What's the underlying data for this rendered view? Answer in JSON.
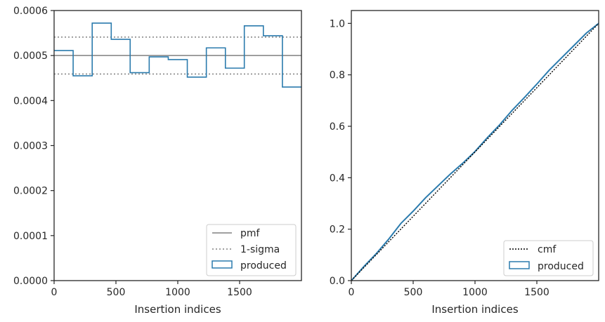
{
  "colors": {
    "produced": "#2b7bad",
    "pmf": "#808080",
    "sigma": "#808080",
    "cmf": "#000000",
    "axes": "#262626"
  },
  "chart_data": [
    {
      "type": "histogram",
      "xlabel": "Insertion indices",
      "ylabel": "",
      "xlim": [
        0,
        2000
      ],
      "ylim": [
        0,
        0.0006
      ],
      "xticks": [
        0,
        500,
        1000,
        1500
      ],
      "xtick_labels": [
        "0",
        "500",
        "1000",
        "1500"
      ],
      "yticks": [
        0,
        0.0001,
        0.0002,
        0.0003,
        0.0004,
        0.0005,
        0.0006
      ],
      "ytick_labels": [
        "0.0000",
        "0.0001",
        "0.0002",
        "0.0003",
        "0.0004",
        "0.0005",
        "0.0006"
      ],
      "pmf": 0.0005,
      "sigma_upper": 0.000541,
      "sigma_lower": 0.000459,
      "bin_edges": [
        0,
        154,
        308,
        462,
        615,
        769,
        923,
        1077,
        1231,
        1385,
        1538,
        1692,
        1846,
        2000
      ],
      "produced": [
        0.000511,
        0.000455,
        0.000572,
        0.000536,
        0.000462,
        0.000497,
        0.000491,
        0.000452,
        0.000517,
        0.000472,
        0.000566,
        0.000544,
        0.00043
      ],
      "legend": {
        "placement": "lower-right",
        "entries": [
          "pmf",
          "1-sigma",
          "produced"
        ]
      }
    },
    {
      "type": "line",
      "xlabel": "Insertion indices",
      "ylabel": "",
      "xlim": [
        0,
        2000
      ],
      "ylim": [
        0,
        1.05
      ],
      "xticks": [
        0,
        500,
        1000,
        1500
      ],
      "xtick_labels": [
        "0",
        "500",
        "1000",
        "1500"
      ],
      "yticks": [
        0,
        0.2,
        0.4,
        0.6,
        0.8,
        1.0
      ],
      "ytick_labels": [
        "0.0",
        "0.2",
        "0.4",
        "0.6",
        "0.8",
        "1.0"
      ],
      "cmf": {
        "x": [
          0,
          2000
        ],
        "y": [
          0,
          1
        ]
      },
      "produced": {
        "x": [
          0,
          100,
          200,
          300,
          400,
          500,
          600,
          700,
          800,
          900,
          1000,
          1100,
          1200,
          1300,
          1400,
          1500,
          1600,
          1700,
          1800,
          1900,
          2000
        ],
        "y": [
          0,
          0.054,
          0.104,
          0.16,
          0.222,
          0.27,
          0.322,
          0.368,
          0.414,
          0.456,
          0.502,
          0.556,
          0.606,
          0.662,
          0.712,
          0.764,
          0.818,
          0.866,
          0.914,
          0.962,
          1.0
        ]
      },
      "legend": {
        "placement": "lower-right",
        "entries": [
          "cmf",
          "produced"
        ]
      }
    }
  ]
}
